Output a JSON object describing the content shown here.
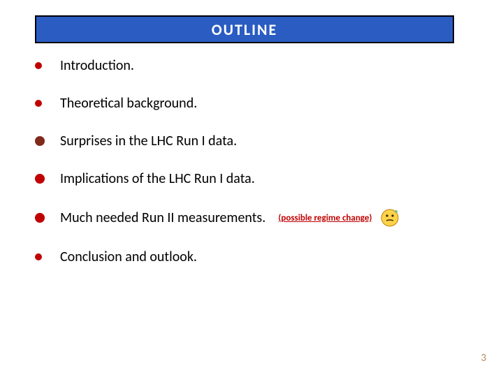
{
  "title": "OUTLINE",
  "title_box_bg": "#2a5cc2",
  "title_box_border": "#000000",
  "title_text_color": "#ffffff",
  "bullets": [
    {
      "text": "Introduction.",
      "color": "#c00000",
      "size": "small"
    },
    {
      "text": "Theoretical background.",
      "color": "#c00000",
      "size": "small"
    },
    {
      "text": "Surprises in the LHC Run I data.",
      "color": "#7f2a1a",
      "size": "large"
    },
    {
      "text": "Implications of the LHC Run I data.",
      "color": "#c00000",
      "size": "large"
    },
    {
      "text": "Much needed Run II measurements.",
      "color": "#c00000",
      "size": "large",
      "annotation": "(possible regime change)",
      "annotation_color": "#c00000",
      "has_emoji": true
    },
    {
      "text": "Conclusion and outlook.",
      "color": "#c00000",
      "size": "small"
    }
  ],
  "page_number": "3",
  "page_number_color": "#b58b5a"
}
